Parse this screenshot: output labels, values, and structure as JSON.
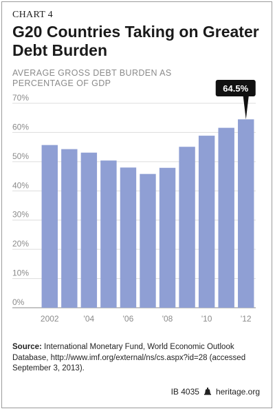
{
  "header": {
    "kicker": "CHART 4",
    "title": "G20 Countries Taking on Greater Debt Burden",
    "subtitle": "AVERAGE GROSS DEBT BURDEN AS PERCENTAGE OF GDP"
  },
  "chart_data": {
    "type": "bar",
    "categories": [
      "2002",
      "2003",
      "2004",
      "2005",
      "2006",
      "2007",
      "2008",
      "2009",
      "2010",
      "2011",
      "2012"
    ],
    "tick_labels": [
      "2002",
      "",
      "'04",
      "",
      "'06",
      "",
      "'08",
      "",
      "'10",
      "",
      "'12"
    ],
    "values": [
      55.7,
      54.3,
      53.1,
      50.4,
      48.0,
      45.8,
      47.9,
      55.1,
      58.9,
      61.6,
      64.5
    ],
    "ylim": [
      0,
      70
    ],
    "yticks": [
      "0%",
      "10%",
      "20%",
      "30%",
      "40%",
      "50%",
      "60%",
      "70%"
    ],
    "callout": "64.5%",
    "bar_color": "#8f9fd4",
    "grid": true
  },
  "source": {
    "label": "Source:",
    "text": "International Monetary Fund, World Economic Outlook Database, http://www.imf.org/external/ns/cs.aspx?id=28 (accessed September 3, 2013)."
  },
  "footer": {
    "id": "IB 4035",
    "site": "heritage.org",
    "logo_icon": "liberty-bell-icon"
  }
}
